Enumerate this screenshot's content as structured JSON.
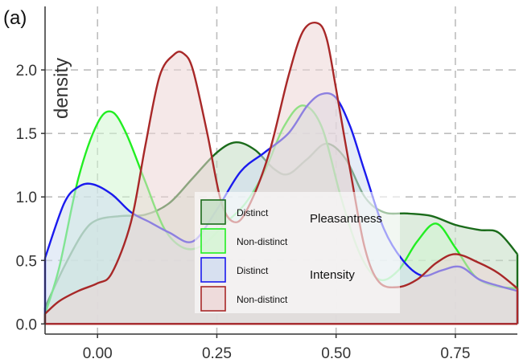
{
  "panel_label": "(a)",
  "chart_data": {
    "type": "area",
    "ylabel": "density",
    "xlabel": "",
    "xlim": [
      -0.11,
      0.88
    ],
    "ylim": [
      -0.08,
      2.5
    ],
    "x_ticks": [
      0.0,
      0.25,
      0.5,
      0.75
    ],
    "x_tick_labels": [
      "0.00",
      "0.25",
      "0.50",
      "0.75"
    ],
    "y_ticks": [
      0.0,
      0.5,
      1.0,
      1.5,
      2.0
    ],
    "y_tick_labels": [
      "0.0",
      "0.5",
      "1.0",
      "1.5",
      "2.0"
    ],
    "grid": true,
    "legend": {
      "placement": "bottom-center",
      "group_labels": [
        "Pleasantness",
        "Intensity"
      ],
      "entries": [
        {
          "label": "Distinct",
          "group": "Pleasantness",
          "series": 0
        },
        {
          "label": "Non-distinct",
          "group": "Pleasantness",
          "series": 1
        },
        {
          "label": "Distinct",
          "group": "Intensity",
          "series": 2
        },
        {
          "label": "Non-distinct",
          "group": "Intensity",
          "series": 3
        }
      ]
    },
    "series": [
      {
        "stroke": "#1a6b1a",
        "fill": "#c2dcc2",
        "x": [
          -0.11,
          -0.07,
          -0.03,
          0.0,
          0.05,
          0.1,
          0.15,
          0.2,
          0.25,
          0.29,
          0.33,
          0.37,
          0.4,
          0.44,
          0.48,
          0.52,
          0.56,
          0.6,
          0.65,
          0.7,
          0.75,
          0.8,
          0.84,
          0.88
        ],
        "y": [
          0.13,
          0.45,
          0.72,
          0.82,
          0.85,
          0.86,
          0.95,
          1.15,
          1.35,
          1.43,
          1.37,
          1.22,
          1.18,
          1.3,
          1.42,
          1.3,
          1.0,
          0.88,
          0.87,
          0.85,
          0.78,
          0.74,
          0.72,
          0.55
        ]
      },
      {
        "stroke": "#22ee22",
        "fill": "#d2f5d2",
        "x": [
          -0.11,
          -0.08,
          -0.04,
          0.0,
          0.03,
          0.06,
          0.1,
          0.14,
          0.18,
          0.22,
          0.27,
          0.31,
          0.35,
          0.39,
          0.43,
          0.47,
          0.51,
          0.55,
          0.59,
          0.63,
          0.67,
          0.71,
          0.75,
          0.79,
          0.83,
          0.88
        ],
        "y": [
          0.08,
          0.45,
          1.15,
          1.58,
          1.67,
          1.5,
          1.12,
          0.75,
          0.6,
          0.62,
          0.8,
          0.95,
          1.2,
          1.55,
          1.72,
          1.55,
          1.0,
          0.55,
          0.35,
          0.42,
          0.65,
          0.79,
          0.6,
          0.38,
          0.3,
          0.28
        ]
      },
      {
        "stroke": "#1a1aee",
        "fill": "#d0dcf0",
        "x": [
          -0.11,
          -0.07,
          -0.04,
          -0.01,
          0.03,
          0.07,
          0.11,
          0.15,
          0.2,
          0.25,
          0.3,
          0.35,
          0.4,
          0.44,
          0.47,
          0.5,
          0.53,
          0.56,
          0.6,
          0.64,
          0.68,
          0.72,
          0.76,
          0.8,
          0.84,
          0.88
        ],
        "y": [
          0.52,
          0.95,
          1.08,
          1.1,
          1.02,
          0.88,
          0.8,
          0.72,
          0.65,
          0.9,
          1.2,
          1.35,
          1.5,
          1.72,
          1.81,
          1.78,
          1.55,
          1.2,
          0.75,
          0.5,
          0.38,
          0.42,
          0.45,
          0.35,
          0.3,
          0.26
        ]
      },
      {
        "stroke": "#a82828",
        "fill": "#ecd6d6",
        "x": [
          -0.11,
          -0.08,
          -0.04,
          0.0,
          0.03,
          0.07,
          0.1,
          0.13,
          0.16,
          0.18,
          0.2,
          0.23,
          0.26,
          0.29,
          0.32,
          0.36,
          0.4,
          0.43,
          0.46,
          0.48,
          0.5,
          0.53,
          0.56,
          0.59,
          0.63,
          0.67,
          0.71,
          0.75,
          0.8,
          0.84,
          0.88
        ],
        "y": [
          0.08,
          0.18,
          0.26,
          0.32,
          0.4,
          0.8,
          1.4,
          1.95,
          2.12,
          2.13,
          2.0,
          1.5,
          0.95,
          0.8,
          0.95,
          1.35,
          1.95,
          2.3,
          2.37,
          2.25,
          1.85,
          1.2,
          0.6,
          0.33,
          0.29,
          0.35,
          0.48,
          0.55,
          0.48,
          0.4,
          0.28
        ]
      }
    ]
  }
}
